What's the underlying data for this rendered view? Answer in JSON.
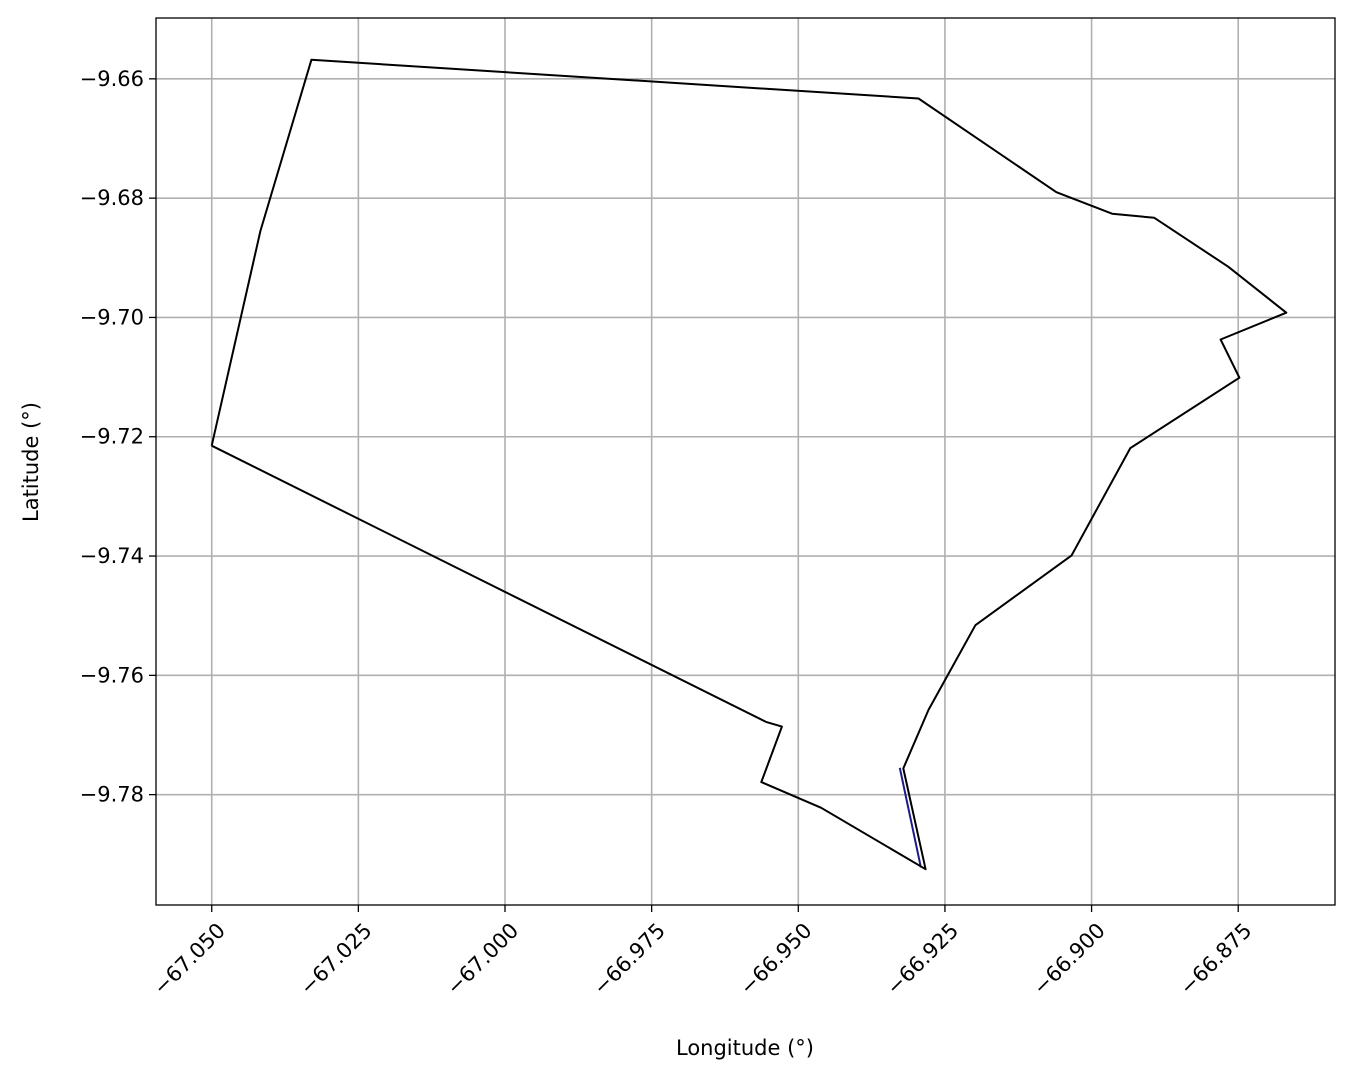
{
  "chart_data": {
    "type": "line",
    "title": "",
    "xlabel": "Longitude (°)",
    "ylabel": "Latitude (°)",
    "xlim": [
      -67.0595,
      -66.8585
    ],
    "ylim": [
      -9.7985,
      -9.6498
    ],
    "grid": true,
    "legend": "none",
    "xticks": [
      {
        "value": -67.05,
        "label": "−67.050"
      },
      {
        "value": -67.025,
        "label": "−67.025"
      },
      {
        "value": -67.0,
        "label": "−67.000"
      },
      {
        "value": -66.975,
        "label": "−66.975"
      },
      {
        "value": -66.95,
        "label": "−66.950"
      },
      {
        "value": -66.925,
        "label": "−66.925"
      },
      {
        "value": -66.9,
        "label": "−66.900"
      },
      {
        "value": -66.875,
        "label": "−66.875"
      }
    ],
    "yticks": [
      {
        "value": -9.66,
        "label": "−9.66"
      },
      {
        "value": -9.68,
        "label": "−9.68"
      },
      {
        "value": -9.7,
        "label": "−9.70"
      },
      {
        "value": -9.72,
        "label": "−9.72"
      },
      {
        "value": -9.74,
        "label": "−9.74"
      },
      {
        "value": -9.76,
        "label": "−9.76"
      },
      {
        "value": -9.78,
        "label": "−9.78"
      }
    ],
    "series": [
      {
        "color": "#000000",
        "points": [
          [
            -67.05,
            -9.7215
          ],
          [
            -67.0417,
            -9.6855
          ],
          [
            -67.033,
            -9.6568
          ],
          [
            -66.9295,
            -9.6633
          ],
          [
            -66.906,
            -9.679
          ],
          [
            -66.8965,
            -9.6826
          ],
          [
            -66.8893,
            -9.6833
          ],
          [
            -66.8767,
            -9.6915
          ],
          [
            -66.8668,
            -9.6992
          ],
          [
            -66.878,
            -9.7037
          ],
          [
            -66.8748,
            -9.7101
          ],
          [
            -66.8934,
            -9.7219
          ],
          [
            -66.9034,
            -9.7399
          ],
          [
            -66.9198,
            -9.7516
          ],
          [
            -66.9278,
            -9.7658
          ],
          [
            -66.9321,
            -9.7756
          ],
          [
            -66.9283,
            -9.7925
          ],
          [
            -66.9461,
            -9.7822
          ],
          [
            -66.9563,
            -9.7779
          ],
          [
            -66.9528,
            -9.7686
          ],
          [
            -66.9555,
            -9.7678
          ],
          [
            -67.05,
            -9.7215
          ]
        ]
      },
      {
        "color": "#1a1a8c",
        "points": [
          [
            -66.9327,
            -9.7755
          ],
          [
            -66.9291,
            -9.7922
          ]
        ]
      }
    ]
  }
}
